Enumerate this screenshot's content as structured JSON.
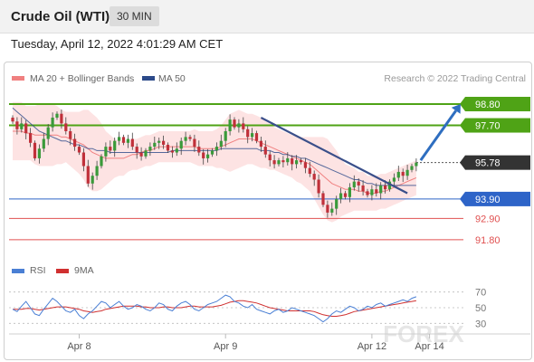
{
  "header": {
    "instrument": "Crude Oil (WTI)",
    "timeframe": "30 MIN"
  },
  "datetime": "Tuesday, April 12, 2022 4:01:29 AM CET",
  "credit": "Research © 2022 Trading Central",
  "watermark": "FOREX",
  "chart_data": [
    {
      "type": "candlestick",
      "legend": [
        {
          "name": "MA 20 + Bollinger Bands",
          "color": "#f08080"
        },
        {
          "name": "MA 50",
          "color": "#2c4a8a"
        }
      ],
      "y_range": [
        91.0,
        99.5
      ],
      "x_labels": [
        {
          "label": "Apr 8",
          "index": 15
        },
        {
          "label": "Apr 9",
          "index": 48
        },
        {
          "label": "Apr 12",
          "index": 81
        },
        {
          "label": "Apr 14",
          "index": 94
        }
      ],
      "levels": [
        {
          "value": 98.8,
          "label": "98.80",
          "kind": "resistance",
          "color": "#4fa316"
        },
        {
          "value": 97.7,
          "label": "97.70",
          "kind": "resistance",
          "color": "#4fa316"
        },
        {
          "value": 95.78,
          "label": "95.78",
          "kind": "last",
          "color": "#333333"
        },
        {
          "value": 93.9,
          "label": "93.90",
          "kind": "pivot",
          "color": "#2e64c8"
        },
        {
          "value": 92.9,
          "label": "92.90",
          "kind": "support",
          "color": "#e05050"
        },
        {
          "value": 91.8,
          "label": "91.80",
          "kind": "support",
          "color": "#e05050"
        }
      ],
      "closes": [
        97.9,
        97.5,
        97.8,
        97.3,
        96.8,
        96.0,
        96.5,
        97.0,
        97.6,
        98.1,
        98.3,
        97.8,
        97.4,
        97.0,
        96.6,
        96.3,
        95.6,
        94.7,
        95.1,
        95.6,
        96.1,
        96.6,
        96.4,
        96.9,
        97.1,
        96.8,
        97.0,
        96.6,
        96.3,
        96.1,
        96.4,
        96.6,
        96.8,
        96.9,
        96.7,
        96.4,
        96.3,
        96.5,
        96.9,
        97.1,
        97.0,
        96.6,
        96.3,
        96.0,
        96.2,
        96.4,
        96.6,
        96.9,
        97.4,
        98.0,
        97.6,
        97.8,
        97.5,
        97.1,
        97.3,
        96.9,
        96.6,
        96.2,
        95.9,
        95.7,
        95.9,
        95.8,
        96.0,
        95.7,
        95.9,
        95.8,
        95.5,
        95.2,
        94.9,
        94.2,
        93.6,
        93.2,
        93.4,
        93.9,
        94.2,
        94.0,
        94.5,
        94.8,
        94.6,
        94.3,
        94.1,
        94.4,
        94.2,
        94.6,
        94.4,
        94.8,
        95.0,
        95.3,
        95.1,
        95.4,
        95.6,
        95.78
      ],
      "ma20": [
        97.4,
        97.4,
        97.4,
        97.3,
        97.3,
        97.2,
        97.2,
        97.2,
        97.2,
        97.2,
        97.2,
        97.1,
        97.1,
        97.0,
        96.9,
        96.8,
        96.7,
        96.5,
        96.3,
        96.2,
        96.1,
        96.0,
        96.0,
        96.0,
        96.0,
        96.0,
        96.1,
        96.2,
        96.2,
        96.3,
        96.4,
        96.4,
        96.5,
        96.6,
        96.6,
        96.6,
        96.6,
        96.6,
        96.6,
        96.6,
        96.6,
        96.6,
        96.5,
        96.5,
        96.5,
        96.5,
        96.5,
        96.6,
        96.7,
        96.8,
        96.9,
        97.0,
        97.0,
        97.0,
        97.0,
        96.9,
        96.8,
        96.7,
        96.6,
        96.5,
        96.4,
        96.3,
        96.2,
        96.1,
        96.0,
        95.9,
        95.8,
        95.7,
        95.5,
        95.3,
        95.1,
        94.9,
        94.7,
        94.6,
        94.5,
        94.4,
        94.4,
        94.4,
        94.3,
        94.3,
        94.2,
        94.2,
        94.2,
        94.3,
        94.3,
        94.4,
        94.5,
        94.6,
        94.7,
        94.8,
        94.9,
        95.0
      ],
      "ma50": [
        98.6,
        98.4,
        98.2,
        98.0,
        97.8,
        97.6,
        97.4,
        97.3,
        97.2,
        97.1,
        97.0,
        96.9,
        96.9,
        96.8,
        96.7,
        96.7,
        96.6,
        96.5,
        96.5,
        96.4,
        96.4,
        96.4,
        96.3,
        96.3,
        96.3,
        96.3,
        96.3,
        96.3,
        96.3,
        96.3,
        96.3,
        96.3,
        96.3,
        96.3,
        96.3,
        96.3,
        96.4,
        96.4,
        96.4,
        96.4,
        96.4,
        96.4,
        96.4,
        96.4,
        96.4,
        96.4,
        96.4,
        96.5,
        96.5,
        96.5,
        96.5,
        96.5,
        96.5,
        96.5,
        96.5,
        96.5,
        96.4,
        96.4,
        96.4,
        96.3,
        96.3,
        96.2,
        96.2,
        96.1,
        96.1,
        96.0,
        96.0,
        95.9,
        95.8,
        95.7,
        95.6,
        95.5,
        95.4,
        95.3,
        95.2,
        95.1,
        95.0,
        94.9,
        94.9,
        94.8,
        94.7,
        94.7,
        94.6,
        94.6,
        94.6,
        94.6,
        94.6,
        94.6,
        94.6,
        94.6,
        94.6,
        94.6
      ],
      "band_width": [
        1.5,
        1.5,
        1.5,
        1.4,
        1.4,
        1.5,
        1.6,
        1.6,
        1.6,
        1.6,
        1.5,
        1.4,
        1.3,
        1.4,
        1.5,
        1.6,
        1.8,
        2.0,
        2.0,
        1.9,
        1.7,
        1.4,
        1.2,
        1.0,
        0.9,
        0.9,
        0.8,
        0.8,
        0.8,
        0.8,
        0.8,
        0.8,
        0.8,
        0.8,
        0.8,
        0.8,
        0.8,
        0.8,
        0.8,
        0.8,
        0.8,
        0.9,
        0.9,
        0.9,
        0.9,
        0.9,
        1.0,
        1.1,
        1.3,
        1.5,
        1.5,
        1.5,
        1.4,
        1.3,
        1.3,
        1.3,
        1.3,
        1.2,
        1.2,
        1.1,
        1.1,
        1.1,
        1.1,
        1.1,
        1.2,
        1.2,
        1.3,
        1.4,
        1.6,
        1.8,
        2.0,
        2.1,
        2.0,
        1.8,
        1.5,
        1.3,
        1.2,
        1.1,
        1.0,
        1.0,
        0.9,
        0.9,
        0.9,
        0.9,
        0.9,
        0.9,
        0.9,
        0.9,
        0.9,
        0.9,
        0.9,
        0.9
      ],
      "trendline": {
        "from": {
          "index": 56,
          "value": 98.1
        },
        "to": {
          "index": 89,
          "value": 94.2
        }
      },
      "forecast_arrow": {
        "from": {
          "index": 92,
          "value": 95.9
        },
        "to": {
          "index": 101,
          "value": 98.8
        }
      }
    },
    {
      "type": "line",
      "legend": [
        {
          "name": "RSI",
          "color": "#4a7fd4"
        },
        {
          "name": "9MA",
          "color": "#d03030"
        }
      ],
      "y_range": [
        20,
        80
      ],
      "y_ticks": [
        70,
        50,
        30
      ],
      "rsi": [
        48,
        45,
        52,
        58,
        50,
        42,
        40,
        48,
        55,
        62,
        58,
        52,
        46,
        44,
        48,
        40,
        36,
        42,
        46,
        52,
        58,
        56,
        50,
        54,
        58,
        52,
        48,
        50,
        54,
        52,
        48,
        46,
        50,
        56,
        54,
        48,
        46,
        52,
        56,
        58,
        54,
        48,
        46,
        50,
        54,
        56,
        58,
        62,
        66,
        64,
        58,
        56,
        52,
        50,
        54,
        48,
        46,
        44,
        42,
        46,
        48,
        44,
        46,
        50,
        48,
        46,
        44,
        42,
        40,
        36,
        32,
        36,
        42,
        46,
        44,
        48,
        52,
        50,
        46,
        48,
        52,
        50,
        54,
        56,
        52,
        54,
        56,
        58,
        60,
        58,
        62,
        64
      ],
      "ma9": [
        48,
        48,
        48,
        49,
        49,
        48,
        47,
        48,
        49,
        50,
        51,
        51,
        51,
        50,
        49,
        48,
        46,
        45,
        44,
        45,
        46,
        48,
        49,
        50,
        51,
        52,
        52,
        52,
        52,
        51,
        51,
        50,
        50,
        50,
        51,
        51,
        50,
        50,
        50,
        51,
        52,
        52,
        51,
        51,
        51,
        51,
        52,
        53,
        55,
        57,
        58,
        59,
        59,
        58,
        57,
        56,
        54,
        52,
        50,
        49,
        48,
        47,
        46,
        46,
        46,
        46,
        46,
        46,
        45,
        43,
        41,
        40,
        39,
        39,
        40,
        41,
        43,
        45,
        46,
        47,
        48,
        49,
        50,
        51,
        52,
        53,
        54,
        55,
        56,
        57,
        58,
        59
      ]
    }
  ]
}
